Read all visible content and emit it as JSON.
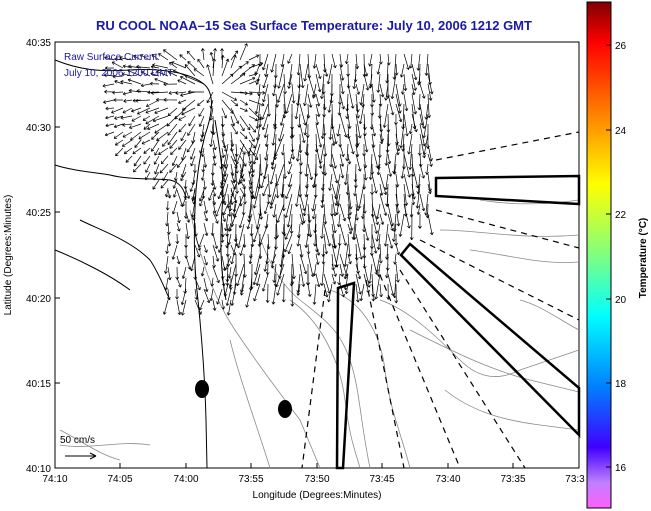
{
  "title": "RU COOL  NOAA–15  Sea Surface Temperature:  July 10, 2006 1212 GMT",
  "legend": {
    "line1": "Raw Surface Current",
    "line2": "July 10, 2006 1200 GMT"
  },
  "scale_label": "50 cm/s",
  "axes": {
    "xlabel": "Longitude (Degrees:Minutes)",
    "ylabel": "Latitude (Degrees:Minutes)",
    "xticks": [
      "74:10",
      "74:05",
      "74:00",
      "73:55",
      "73:50",
      "73:45",
      "73:40",
      "73:35",
      "73:3"
    ],
    "yticks": [
      "40:35",
      "40:30",
      "40:25",
      "40:20",
      "40:15",
      "40:10"
    ]
  },
  "colorbar": {
    "label": "Temperature (°C)",
    "ticks": [
      "26",
      "24",
      "22",
      "20",
      "18",
      "16"
    ]
  },
  "colors": {
    "title": "#1a1aa6",
    "legend_text": "#1a1aa6",
    "contour": "#808080",
    "coast": "#000000"
  },
  "features": {
    "shipping_lanes": 3,
    "buoys": 2
  }
}
